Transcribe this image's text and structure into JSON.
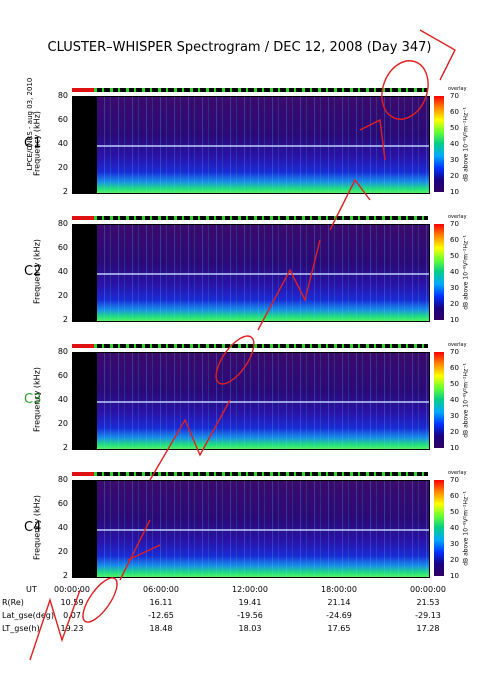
{
  "chart_data": {
    "type": "heatmap",
    "title": "CLUSTER–WHISPER Spectrogram / DEC 12, 2008 (Day 347)",
    "credit": "LPCE/CNRS - aug 03, 2010",
    "ylabel": "Frequency (kHz)",
    "yticks": [
      "80",
      "60",
      "40",
      "20",
      "2"
    ],
    "ylim": [
      2,
      80
    ],
    "colorbar_label": "dB above 10⁻⁸V²m⁻²Hz⁻¹",
    "colorbar_ticks": [
      "70",
      "60",
      "50",
      "40",
      "30",
      "20",
      "10"
    ],
    "colorbar_range": [
      10,
      70
    ],
    "overlay_label": "overlay",
    "panels": [
      {
        "name": "C1",
        "color": "#000000"
      },
      {
        "name": "C2",
        "color": "#000000"
      },
      {
        "name": "C3",
        "color": "#2e9e2e"
      },
      {
        "name": "C4",
        "color": "#000000"
      }
    ],
    "xticks": [
      "00:00:00",
      "06:00:00",
      "12:00:00",
      "18:00:00",
      "00:00:00"
    ],
    "xrows": [
      {
        "label": "UT",
        "values": []
      },
      {
        "label": "R(Re)",
        "values": [
          "10.59",
          "16.11",
          "19.41",
          "21.14",
          "21.53"
        ]
      },
      {
        "label": "Lat_gse(deg)",
        "values": [
          "0.07",
          "-12.65",
          "-19.56",
          "-24.69",
          "-29.13"
        ]
      },
      {
        "label": "LT_gse(h)",
        "values": [
          "19.23",
          "18.48",
          "18.03",
          "17.65",
          "17.28"
        ]
      }
    ]
  }
}
